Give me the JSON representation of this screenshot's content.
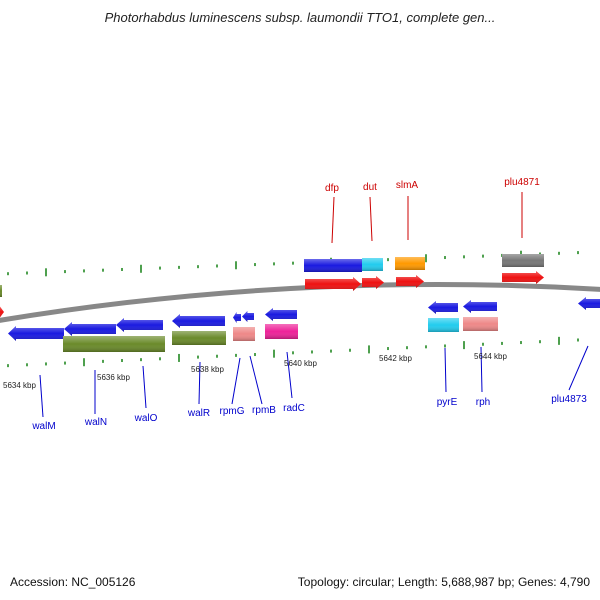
{
  "title": "Photorhabdus luminescens subsp. laumondii TTO1, complete gen...",
  "accession_text": "Accession: NC_005126",
  "summary_text": "Topology: circular; Length: 5,688,987 bp; Genes: 4,790",
  "colors": {
    "blue": "#1a1ae0",
    "red": "#ee1111",
    "olive": "#6a8a2a",
    "cyan": "#22ccee",
    "orange": "#ff9900",
    "pink": "#ee8888",
    "magenta": "#ee2299",
    "gray": "#777777",
    "tick": "#228822",
    "backbone": "#888888",
    "label_top": "#cc0000",
    "label_bottom": "#0000cc"
  },
  "kbp_labels": [
    "5634 kbp",
    "5636 kbp",
    "5638 kbp",
    "5640 kbp",
    "5642 kbp",
    "5644 kbp"
  ],
  "gene_labels_top": [
    "dfp",
    "dut",
    "slmA",
    "plu4871"
  ],
  "gene_labels_bottom": [
    "walM",
    "walN",
    "walO",
    "walR",
    "rpmG",
    "rpmB",
    "radC",
    "pyrE",
    "rph",
    "plu4873"
  ]
}
